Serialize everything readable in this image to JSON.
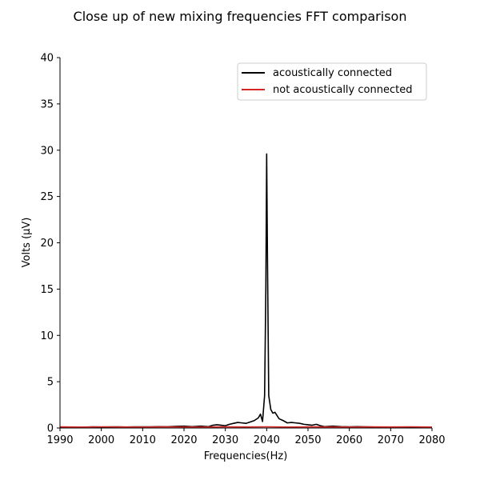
{
  "chart_data": {
    "type": "line",
    "title": "Close up of new mixing frequencies FFT comparison",
    "xlabel": "Frequencies(Hz)",
    "ylabel": "Volts (μV)",
    "xlim": [
      1990,
      2080
    ],
    "ylim": [
      0,
      40
    ],
    "xticks": [
      1990,
      2000,
      2010,
      2020,
      2030,
      2040,
      2050,
      2060,
      2070,
      2080
    ],
    "yticks": [
      0,
      5,
      10,
      15,
      20,
      25,
      30,
      35,
      40
    ],
    "grid": false,
    "legend_position": "upper-right",
    "colors": {
      "connected": "#000000",
      "not_connected": "#d62728",
      "axis": "#000000",
      "legend_border": "#cccccc"
    },
    "series": [
      {
        "name": "acoustically connected",
        "color": "#000000",
        "x": [
          1990,
          1992,
          1994,
          1996,
          1998,
          2000,
          2002,
          2004,
          2006,
          2008,
          2010,
          2012,
          2014,
          2016,
          2018,
          2020,
          2022,
          2024,
          2026,
          2027,
          2028,
          2029,
          2030,
          2031,
          2032,
          2033,
          2034,
          2035,
          2036,
          2037,
          2038,
          2038.5,
          2039,
          2039.5,
          2039.8,
          2040,
          2040.2,
          2040.5,
          2041,
          2041.5,
          2042,
          2043,
          2044,
          2045,
          2046,
          2047,
          2048,
          2049,
          2050,
          2051,
          2052,
          2053,
          2054,
          2056,
          2058,
          2060,
          2062,
          2064,
          2066,
          2068,
          2070,
          2072,
          2074,
          2076,
          2078,
          2080
        ],
        "y": [
          0.1,
          0.08,
          0.1,
          0.09,
          0.12,
          0.1,
          0.11,
          0.12,
          0.1,
          0.12,
          0.13,
          0.12,
          0.15,
          0.14,
          0.18,
          0.2,
          0.15,
          0.2,
          0.15,
          0.3,
          0.35,
          0.3,
          0.25,
          0.4,
          0.5,
          0.6,
          0.55,
          0.5,
          0.65,
          0.8,
          1.1,
          1.5,
          0.7,
          3.5,
          15,
          29.6,
          18,
          3.5,
          2.0,
          1.6,
          1.7,
          1.0,
          0.8,
          0.55,
          0.6,
          0.55,
          0.5,
          0.4,
          0.35,
          0.3,
          0.4,
          0.25,
          0.15,
          0.2,
          0.15,
          0.12,
          0.15,
          0.12,
          0.1,
          0.1,
          0.08,
          0.1,
          0.08,
          0.06,
          0.07,
          0.05
        ]
      },
      {
        "name": "not acoustically connected",
        "color": "#d62728",
        "x": [
          1990,
          1995,
          2000,
          2005,
          2010,
          2015,
          2020,
          2025,
          2030,
          2035,
          2040,
          2045,
          2050,
          2055,
          2060,
          2065,
          2070,
          2075,
          2080
        ],
        "y": [
          0.12,
          0.1,
          0.13,
          0.11,
          0.1,
          0.12,
          0.11,
          0.1,
          0.12,
          0.11,
          0.13,
          0.1,
          0.12,
          0.11,
          0.1,
          0.12,
          0.11,
          0.13,
          0.1
        ]
      }
    ]
  }
}
